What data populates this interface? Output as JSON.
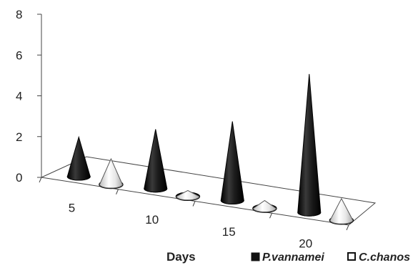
{
  "chart_data": {
    "type": "bar",
    "style": "3d-cone",
    "categories": [
      "5",
      "10",
      "15",
      "20"
    ],
    "xlabel": "Days",
    "ylabel": "",
    "title": "",
    "ylim": [
      0,
      8
    ],
    "yticks": [
      "0",
      "2",
      "4",
      "6",
      "8"
    ],
    "grid": false,
    "legend_position": "bottom-right",
    "series": [
      {
        "name": "P.vannamei",
        "values": [
          2.0,
          3.0,
          4.0,
          7.0
        ],
        "color": "#1a1a1a"
      },
      {
        "name": "C.chanos",
        "values": [
          1.3,
          0.3,
          0.4,
          1.1
        ],
        "color": "#ffffff"
      }
    ]
  }
}
